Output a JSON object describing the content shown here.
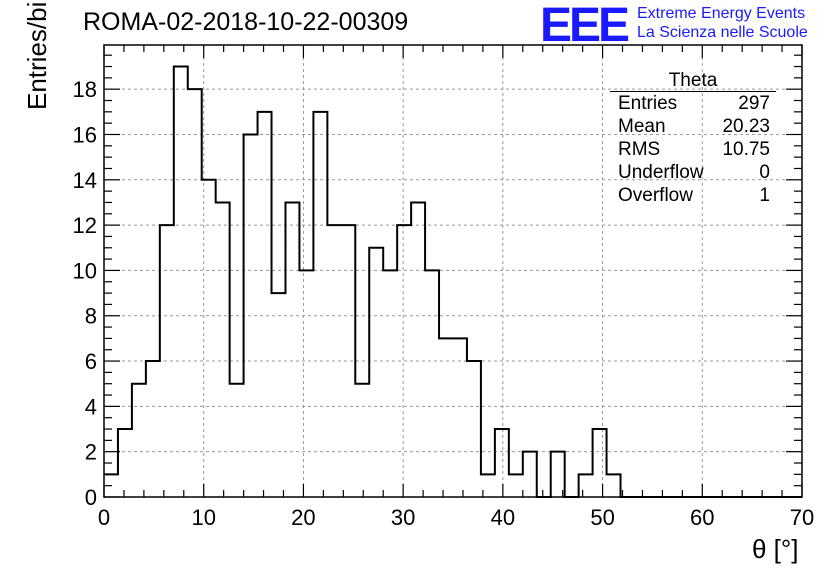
{
  "header": {
    "title": "ROMA-02-2018-10-22-00309",
    "logo_mark": "EEE",
    "logo_line1": "Extreme Energy Events",
    "logo_line2": "La Scienza nelle Scuole"
  },
  "stats_box": {
    "name": "Theta",
    "rows": [
      {
        "label": "Entries",
        "value": "297"
      },
      {
        "label": "Mean",
        "value": "20.23"
      },
      {
        "label": "RMS",
        "value": "10.75"
      },
      {
        "label": "Underflow",
        "value": "0"
      },
      {
        "label": "Overflow",
        "value": "1"
      }
    ]
  },
  "chart_data": {
    "type": "bar",
    "style": "step-histogram",
    "xlabel": "θ [°]",
    "ylabel": "Entries/bin",
    "xlim": [
      0,
      70
    ],
    "ylim": [
      0,
      19.95
    ],
    "bin_width": 1.4,
    "bin_edges_start": 0,
    "values": [
      1,
      3,
      5,
      6,
      12,
      19,
      18,
      14,
      13,
      5,
      16,
      17,
      9,
      13,
      10,
      17,
      12,
      12,
      5,
      11,
      10,
      12,
      13,
      10,
      7,
      7,
      6,
      1,
      3,
      1,
      2,
      0,
      2,
      0,
      1,
      3,
      1,
      0,
      0,
      0,
      0,
      0,
      0,
      0,
      0,
      0,
      0,
      0,
      0,
      0
    ],
    "xticks": [
      0,
      10,
      20,
      30,
      40,
      50,
      60,
      70
    ],
    "yticks": [
      0,
      2,
      4,
      6,
      8,
      10,
      12,
      14,
      16,
      18
    ],
    "grid": true,
    "colors": {
      "line": "#000000",
      "grid": "#999999",
      "logo": "#1a1aff"
    }
  }
}
